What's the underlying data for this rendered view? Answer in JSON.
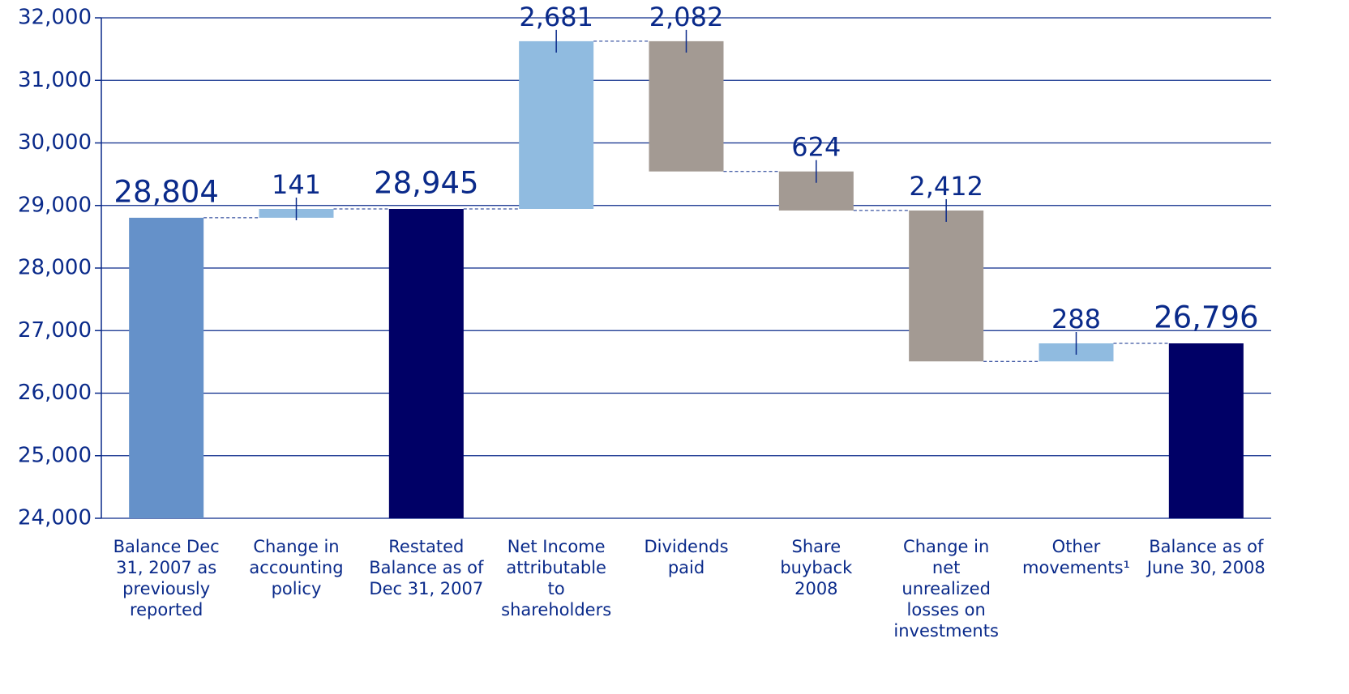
{
  "chart_data": {
    "type": "waterfall",
    "categories": [
      "Balance Dec\n31, 2007 as\npreviously\nreported",
      "Change in\naccounting\npolicy",
      "Restated\nBalance as of\nDec 31, 2007",
      "Net Income\nattributable\nto\nshareholders",
      "Dividends\npaid",
      "Share\nbuyback\n2008",
      "Change in\nnet\nunrealized\nlosses on\ninvestments",
      "Other\nmovements¹",
      "Balance as of\nJune 30, 2008"
    ],
    "values": [
      28804,
      141,
      28945,
      2681,
      -2082,
      -624,
      -2412,
      288,
      26796
    ],
    "value_labels": [
      "28,804",
      "141",
      "28,945",
      "2,681",
      "2,082",
      "624",
      "2,412",
      "288",
      "26,796"
    ],
    "bar_kinds": [
      "total",
      "delta",
      "total",
      "delta",
      "delta",
      "delta",
      "delta",
      "delta",
      "total"
    ],
    "colors": [
      "#6591c9",
      "#90bbe0",
      "#000066",
      "#90bbe0",
      "#a39a93",
      "#a39a93",
      "#a39a93",
      "#90bbe0",
      "#000066"
    ],
    "ylim": [
      24000,
      32000
    ],
    "yticks": [
      {
        "value": 24000,
        "label": "24,000"
      },
      {
        "value": 25000,
        "label": "25,000"
      },
      {
        "value": 26000,
        "label": "26,000"
      },
      {
        "value": 27000,
        "label": "27,000"
      },
      {
        "value": 28000,
        "label": "28,000"
      },
      {
        "value": 29000,
        "label": "29,000"
      },
      {
        "value": 30000,
        "label": "30,000"
      },
      {
        "value": 31000,
        "label": "31,000"
      },
      {
        "value": 32000,
        "label": "32,000"
      }
    ],
    "grid": true
  }
}
